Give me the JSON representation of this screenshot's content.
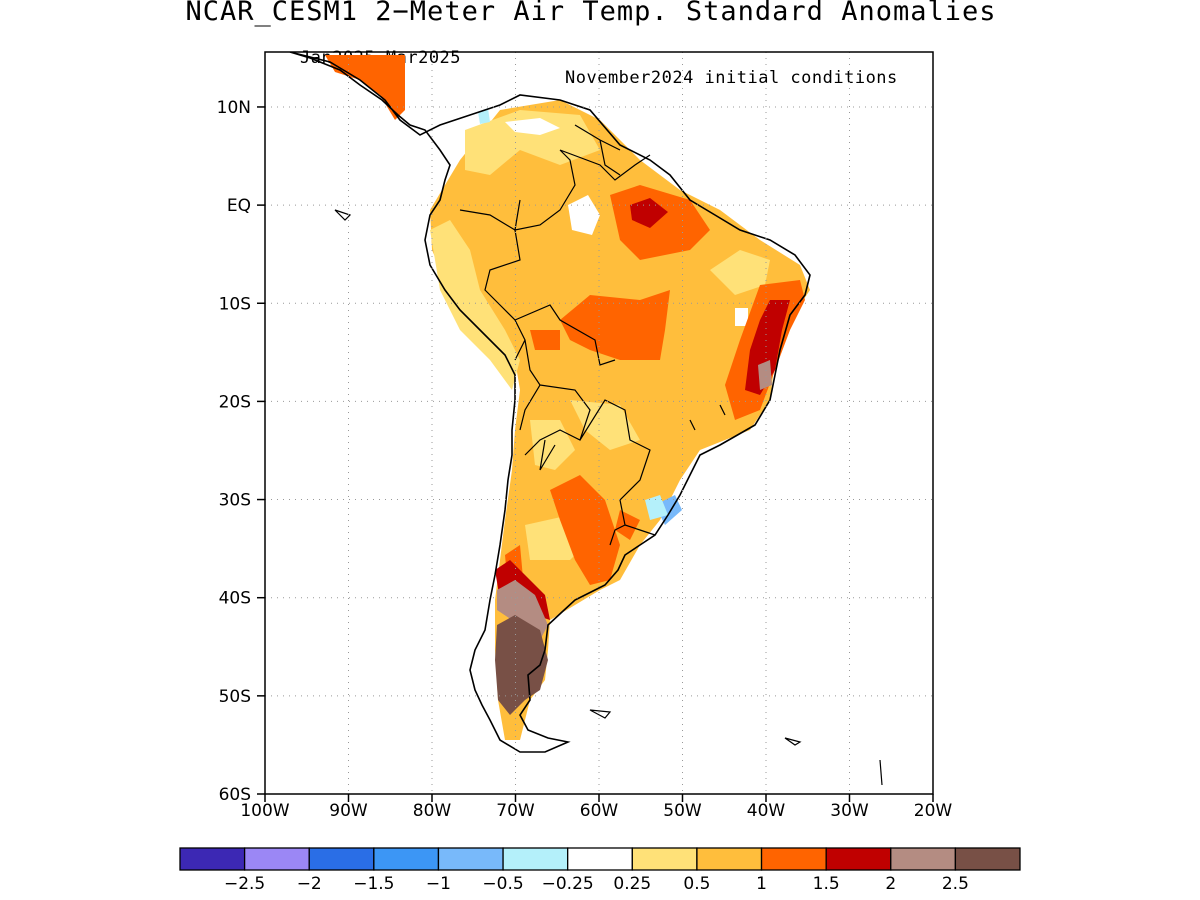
{
  "title": "NCAR_CESM1 2−Meter Air Temp. Standard Anomalies",
  "subtitle_left": "Jan2025−Mar2025",
  "subtitle_right": "November2024 initial conditions",
  "axes": {
    "lat_ticks": [
      "10N",
      "EQ",
      "10S",
      "20S",
      "30S",
      "40S",
      "50S",
      "60S"
    ],
    "lon_ticks": [
      "100W",
      "90W",
      "80W",
      "70W",
      "60W",
      "50W",
      "40W",
      "30W",
      "20W"
    ],
    "grid": "dotted",
    "lat_range": [
      -60,
      15.6
    ],
    "lon_range": [
      -100,
      -20
    ]
  },
  "colorbar": {
    "labels": [
      "−2.5",
      "−2",
      "−1.5",
      "−1",
      "−0.5",
      "−0.25",
      "0.25",
      "0.5",
      "1",
      "1.5",
      "2",
      "2.5"
    ],
    "colors": [
      "#3c28b4",
      "#9b87f5",
      "#2a6ee6",
      "#3c96f5",
      "#78b9fa",
      "#b4f0fa",
      "#ffffff",
      "#ffe178",
      "#ffbe3c",
      "#ff6400",
      "#c00000",
      "#b48c82",
      "#785046"
    ]
  }
}
